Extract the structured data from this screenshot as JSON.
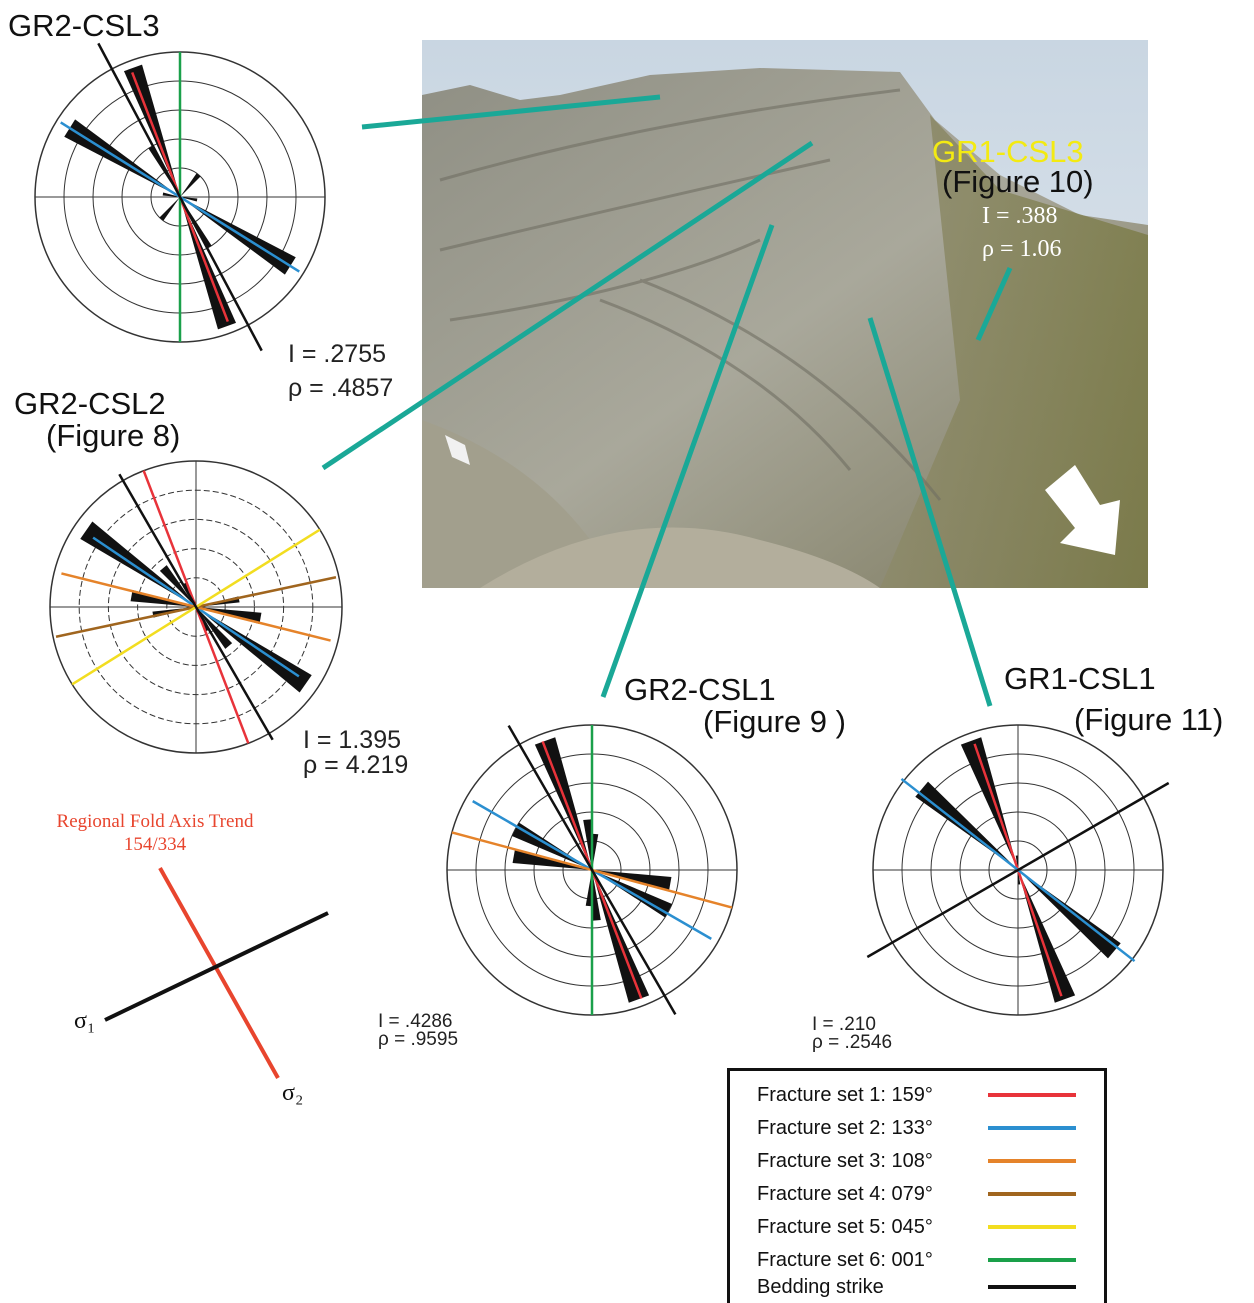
{
  "photo": {
    "label": "GR1-CSL3",
    "figure": "(Figure 10)",
    "I": "I = .388",
    "rho": "ρ = 1.06"
  },
  "roses": [
    {
      "label": "GR2-CSL3",
      "I": "I = .2755",
      "rho": "ρ = .4857"
    },
    {
      "label": "GR2-CSL2",
      "figure": "(Figure 8)",
      "I": "I = 1.395",
      "rho": "ρ = 4.219"
    },
    {
      "label": "GR2-CSL1",
      "figure": "(Figure 9 )",
      "I": "I = .4286",
      "rho": "ρ = .9595"
    },
    {
      "label": "GR1-CSL1",
      "figure": "(Figure 11)",
      "I": "I = .210",
      "rho": "ρ = .2546"
    }
  ],
  "fold": {
    "title": "Regional Fold Axis Trend",
    "trend": "154/334",
    "sigma1": "σ₁",
    "sigma2": "σ₂"
  },
  "legend": [
    "Fracture set 1: 159°",
    "Fracture set 2: 133°",
    "Fracture set 3: 108°",
    "Fracture set 4: 079°",
    "Fracture set 5: 045°",
    "Fracture set 6: 001°",
    "Bedding strike"
  ]
}
